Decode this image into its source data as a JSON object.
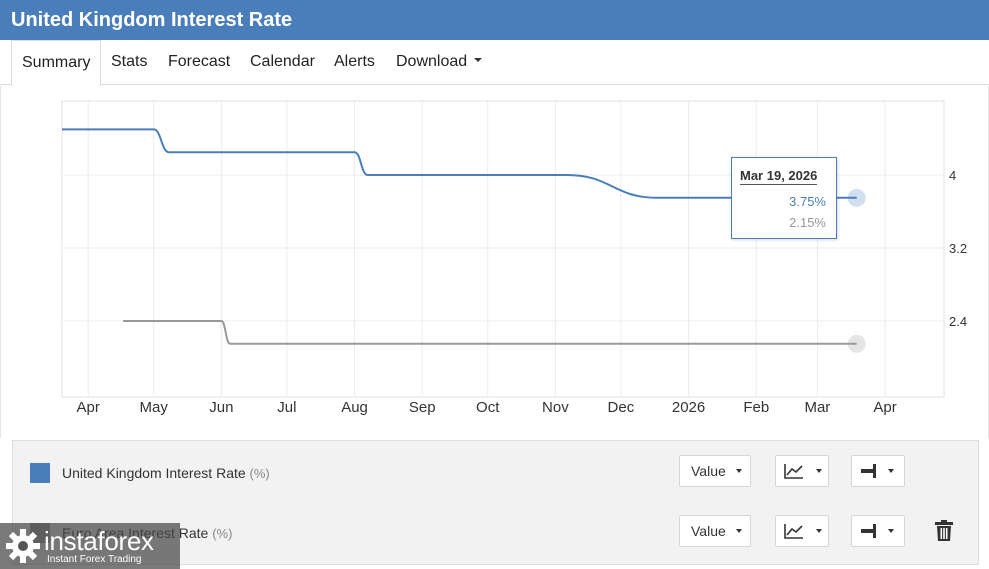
{
  "header": {
    "title": "United Kingdom Interest Rate"
  },
  "tabs": [
    {
      "label": "Summary",
      "active": true
    },
    {
      "label": "Stats"
    },
    {
      "label": "Forecast"
    },
    {
      "label": "Calendar"
    },
    {
      "label": "Alerts"
    },
    {
      "label": "Download",
      "has_dropdown": true
    }
  ],
  "chart_data": {
    "type": "line",
    "x_type": "date",
    "x_ticks": [
      "Apr",
      "May",
      "Jun",
      "Jul",
      "Aug",
      "Sep",
      "Oct",
      "Nov",
      "Dec",
      "2026",
      "Feb",
      "Mar",
      "Apr"
    ],
    "y_ticks": [
      "4",
      "3.2",
      "2.4"
    ],
    "y_axis_position": "right",
    "grid": true,
    "series": [
      {
        "name": "United Kingdom Interest Rate",
        "unit": "%",
        "color": "#4a7ebb",
        "points": [
          {
            "x": "2025-03-20",
            "y": 4.5
          },
          {
            "x": "2025-05-01",
            "y": 4.5
          },
          {
            "x": "2025-05-08",
            "y": 4.25
          },
          {
            "x": "2025-08-01",
            "y": 4.25
          },
          {
            "x": "2025-08-07",
            "y": 4.0
          },
          {
            "x": "2025-11-06",
            "y": 4.0
          },
          {
            "x": "2025-12-18",
            "y": 3.75
          },
          {
            "x": "2026-03-19",
            "y": 3.75
          }
        ]
      },
      {
        "name": "Euro Area Interest Rate",
        "unit": "%",
        "color": "#999999",
        "points": [
          {
            "x": "2025-04-17",
            "y": 2.4
          },
          {
            "x": "2025-06-01",
            "y": 2.4
          },
          {
            "x": "2025-06-05",
            "y": 2.15
          },
          {
            "x": "2026-03-19",
            "y": 2.15
          }
        ]
      }
    ],
    "tooltip": {
      "date": "Mar 19, 2026",
      "values": [
        "3.75%",
        "2.15%"
      ]
    }
  },
  "legend": [
    {
      "name": "United Kingdom Interest Rate",
      "unit": "(%)",
      "color": "#4a7ebb",
      "value_label": "Value",
      "chart_icon": "line-chart-icon",
      "axis_icon": "axis-right-icon"
    },
    {
      "name": "Euro Area Interest Rate",
      "unit": "(%)",
      "color": "#999999",
      "value_label": "Value",
      "chart_icon": "line-chart-icon",
      "axis_icon": "axis-right-icon",
      "has_delete": true
    }
  ],
  "watermark": {
    "brand": "instaforex",
    "tagline": "Instant Forex Trading"
  }
}
